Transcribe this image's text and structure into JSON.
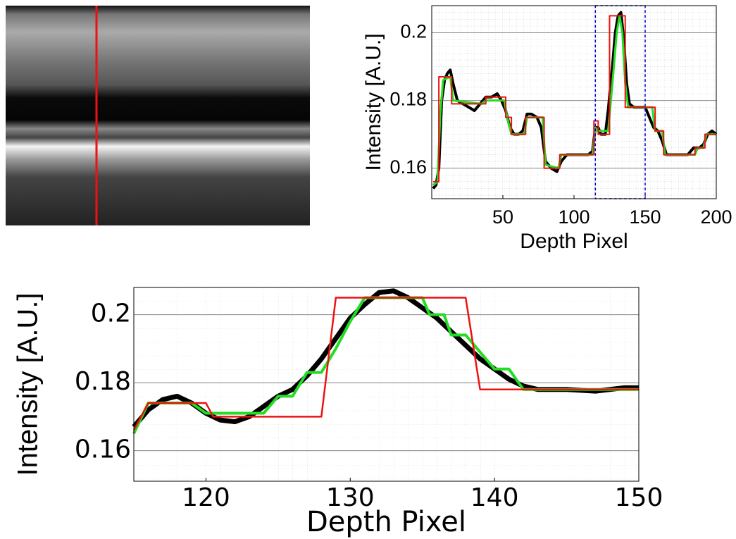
{
  "chart_data": [
    {
      "type": "line",
      "xlabel": "Depth Pixel",
      "ylabel": "Intensity [A.U.]",
      "xlim": [
        0,
        200
      ],
      "ylim": [
        0.151,
        0.208
      ],
      "xticks": [
        50,
        100,
        150,
        200
      ],
      "yticks": [
        0.16,
        0.18,
        0.2
      ],
      "grid": true,
      "zoom_box": {
        "x": [
          115,
          150
        ],
        "color": "#0000cc"
      },
      "series": [
        {
          "color": "#000000",
          "width": 4,
          "x": [
            1,
            3,
            5,
            7,
            9,
            11,
            13,
            15,
            18,
            22,
            26,
            30,
            34,
            38,
            42,
            46,
            49,
            52,
            55,
            58,
            61,
            64,
            67,
            70,
            74,
            77,
            80,
            84,
            88,
            91,
            95,
            100,
            105,
            110,
            113,
            115,
            117,
            119,
            122,
            124,
            127,
            129,
            131,
            133,
            135,
            137,
            139,
            142,
            146,
            150,
            153,
            156,
            159,
            162,
            165,
            170,
            175,
            180,
            184,
            188,
            191,
            194,
            197,
            200
          ],
          "values": [
            0.154,
            0.155,
            0.16,
            0.18,
            0.186,
            0.188,
            0.189,
            0.185,
            0.18,
            0.179,
            0.178,
            0.177,
            0.179,
            0.181,
            0.181,
            0.182,
            0.18,
            0.177,
            0.172,
            0.17,
            0.17,
            0.171,
            0.176,
            0.176,
            0.175,
            0.172,
            0.162,
            0.16,
            0.159,
            0.162,
            0.164,
            0.164,
            0.164,
            0.164,
            0.165,
            0.172,
            0.172,
            0.17,
            0.17,
            0.177,
            0.19,
            0.2,
            0.205,
            0.206,
            0.198,
            0.185,
            0.179,
            0.178,
            0.178,
            0.178,
            0.175,
            0.172,
            0.171,
            0.168,
            0.164,
            0.164,
            0.164,
            0.164,
            0.166,
            0.166,
            0.167,
            0.17,
            0.171,
            0.17
          ]
        },
        {
          "color": "#22dd22",
          "width": 3,
          "x": [
            1,
            4,
            6,
            8,
            13,
            15,
            35,
            38,
            51,
            53,
            56,
            65,
            67,
            78,
            80,
            89,
            91,
            113,
            115,
            117,
            124,
            127,
            130,
            132,
            134,
            136,
            138,
            155,
            157,
            162,
            164,
            185,
            187,
            191,
            193,
            200
          ],
          "values": [
            0.155,
            0.156,
            0.176,
            0.186,
            0.187,
            0.18,
            0.179,
            0.18,
            0.18,
            0.175,
            0.17,
            0.17,
            0.175,
            0.175,
            0.161,
            0.16,
            0.164,
            0.164,
            0.172,
            0.171,
            0.171,
            0.185,
            0.2,
            0.205,
            0.2,
            0.185,
            0.178,
            0.178,
            0.171,
            0.171,
            0.164,
            0.164,
            0.166,
            0.166,
            0.17,
            0.17
          ]
        },
        {
          "color": "#ee1111",
          "width": 2,
          "x": [
            1,
            5,
            5,
            14,
            14,
            38,
            38,
            52,
            52,
            56,
            56,
            66,
            66,
            79,
            79,
            90,
            90,
            114,
            114,
            117,
            117,
            125,
            125,
            136,
            136,
            157,
            157,
            163,
            163,
            185,
            185,
            192,
            192,
            200
          ],
          "values": [
            0.156,
            0.156,
            0.187,
            0.187,
            0.179,
            0.179,
            0.181,
            0.181,
            0.175,
            0.175,
            0.17,
            0.17,
            0.175,
            0.175,
            0.16,
            0.16,
            0.164,
            0.164,
            0.174,
            0.174,
            0.17,
            0.17,
            0.205,
            0.205,
            0.178,
            0.178,
            0.171,
            0.171,
            0.164,
            0.164,
            0.166,
            0.166,
            0.17,
            0.17
          ]
        }
      ]
    },
    {
      "type": "line",
      "xlabel": "Depth Pixel",
      "ylabel": "Intensity [A.U.]",
      "xlim": [
        115,
        150
      ],
      "ylim": [
        0.151,
        0.208
      ],
      "xticks": [
        120,
        130,
        140,
        150
      ],
      "yticks": [
        0.16,
        0.18,
        0.2
      ],
      "grid": true,
      "series": [
        {
          "color": "#000000",
          "width": 7,
          "x": [
            115,
            116,
            117,
            118,
            119,
            120,
            121,
            122,
            123,
            124,
            125,
            126,
            127,
            128,
            129,
            130,
            131,
            132,
            133,
            134,
            135,
            136,
            137,
            138,
            139,
            140,
            141,
            142,
            143,
            145,
            147,
            149,
            150
          ],
          "values": [
            0.167,
            0.172,
            0.175,
            0.176,
            0.174,
            0.171,
            0.169,
            0.1685,
            0.17,
            0.173,
            0.176,
            0.178,
            0.182,
            0.187,
            0.193,
            0.199,
            0.203,
            0.2065,
            0.207,
            0.205,
            0.202,
            0.199,
            0.195,
            0.191,
            0.187,
            0.184,
            0.181,
            0.179,
            0.178,
            0.178,
            0.1775,
            0.1785,
            0.1785
          ]
        },
        {
          "color": "#22dd22",
          "width": 4,
          "x": [
            115,
            116,
            119,
            120,
            124,
            125,
            126,
            127,
            128,
            129,
            130,
            131,
            135,
            135.5,
            136.5,
            137,
            138,
            139,
            140,
            141,
            142,
            150
          ],
          "values": [
            0.165,
            0.174,
            0.174,
            0.171,
            0.171,
            0.176,
            0.176,
            0.183,
            0.183,
            0.19,
            0.198,
            0.205,
            0.205,
            0.2,
            0.2,
            0.194,
            0.194,
            0.189,
            0.184,
            0.184,
            0.178,
            0.178
          ]
        },
        {
          "color": "#ee1111",
          "width": 2.5,
          "x": [
            115,
            116,
            120,
            120.5,
            128,
            129,
            138,
            139,
            150
          ],
          "values": [
            0.166,
            0.174,
            0.174,
            0.17,
            0.17,
            0.205,
            0.205,
            0.178,
            0.178
          ]
        }
      ]
    }
  ]
}
